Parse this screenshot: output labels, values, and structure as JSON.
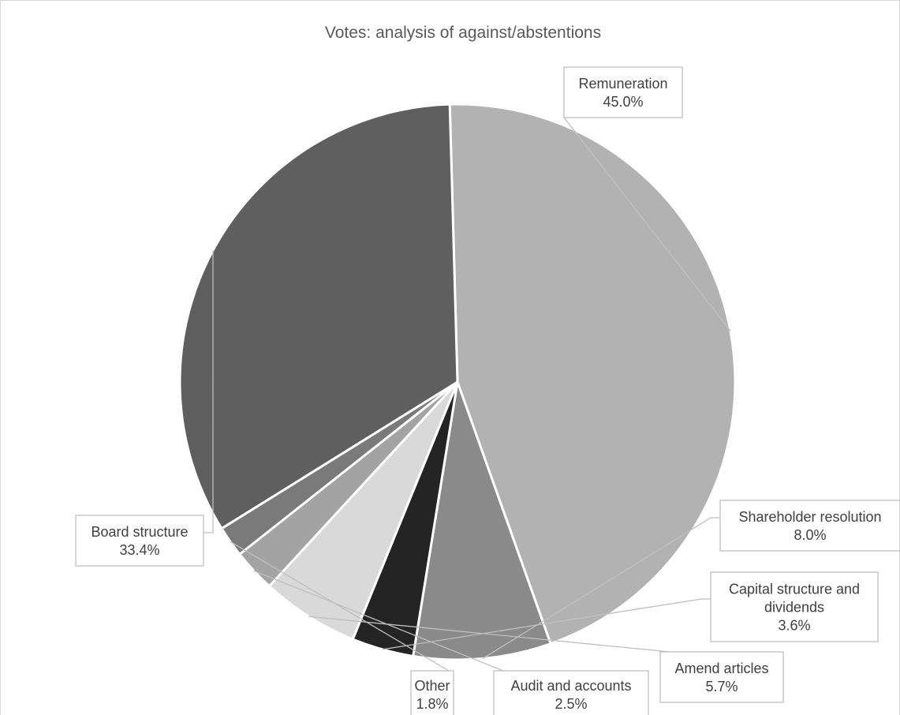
{
  "chart_data": {
    "type": "pie",
    "title": "Votes: analysis of against/abstentions",
    "slices": [
      {
        "label": "Remuneration",
        "value": 45.0,
        "value_label": "45.0%",
        "color": "#b2b2b2"
      },
      {
        "label": "Shareholder resolution",
        "value": 8.0,
        "value_label": "8.0%",
        "color": "#8a8a8a"
      },
      {
        "label": "Capital structure and dividends",
        "value": 3.6,
        "value_label": "3.6%",
        "color": "#242424"
      },
      {
        "label": "Amend articles",
        "value": 5.7,
        "value_label": "5.7%",
        "color": "#d9d9d9"
      },
      {
        "label": "Audit and accounts",
        "value": 2.5,
        "value_label": "2.5%",
        "color": "#a3a3a3"
      },
      {
        "label": "Other",
        "value": 1.8,
        "value_label": "1.8%",
        "color": "#7a7a7a"
      },
      {
        "label": "Board structure",
        "value": 33.4,
        "value_label": "33.4%",
        "color": "#5f5f5f"
      }
    ],
    "legend": "none"
  }
}
